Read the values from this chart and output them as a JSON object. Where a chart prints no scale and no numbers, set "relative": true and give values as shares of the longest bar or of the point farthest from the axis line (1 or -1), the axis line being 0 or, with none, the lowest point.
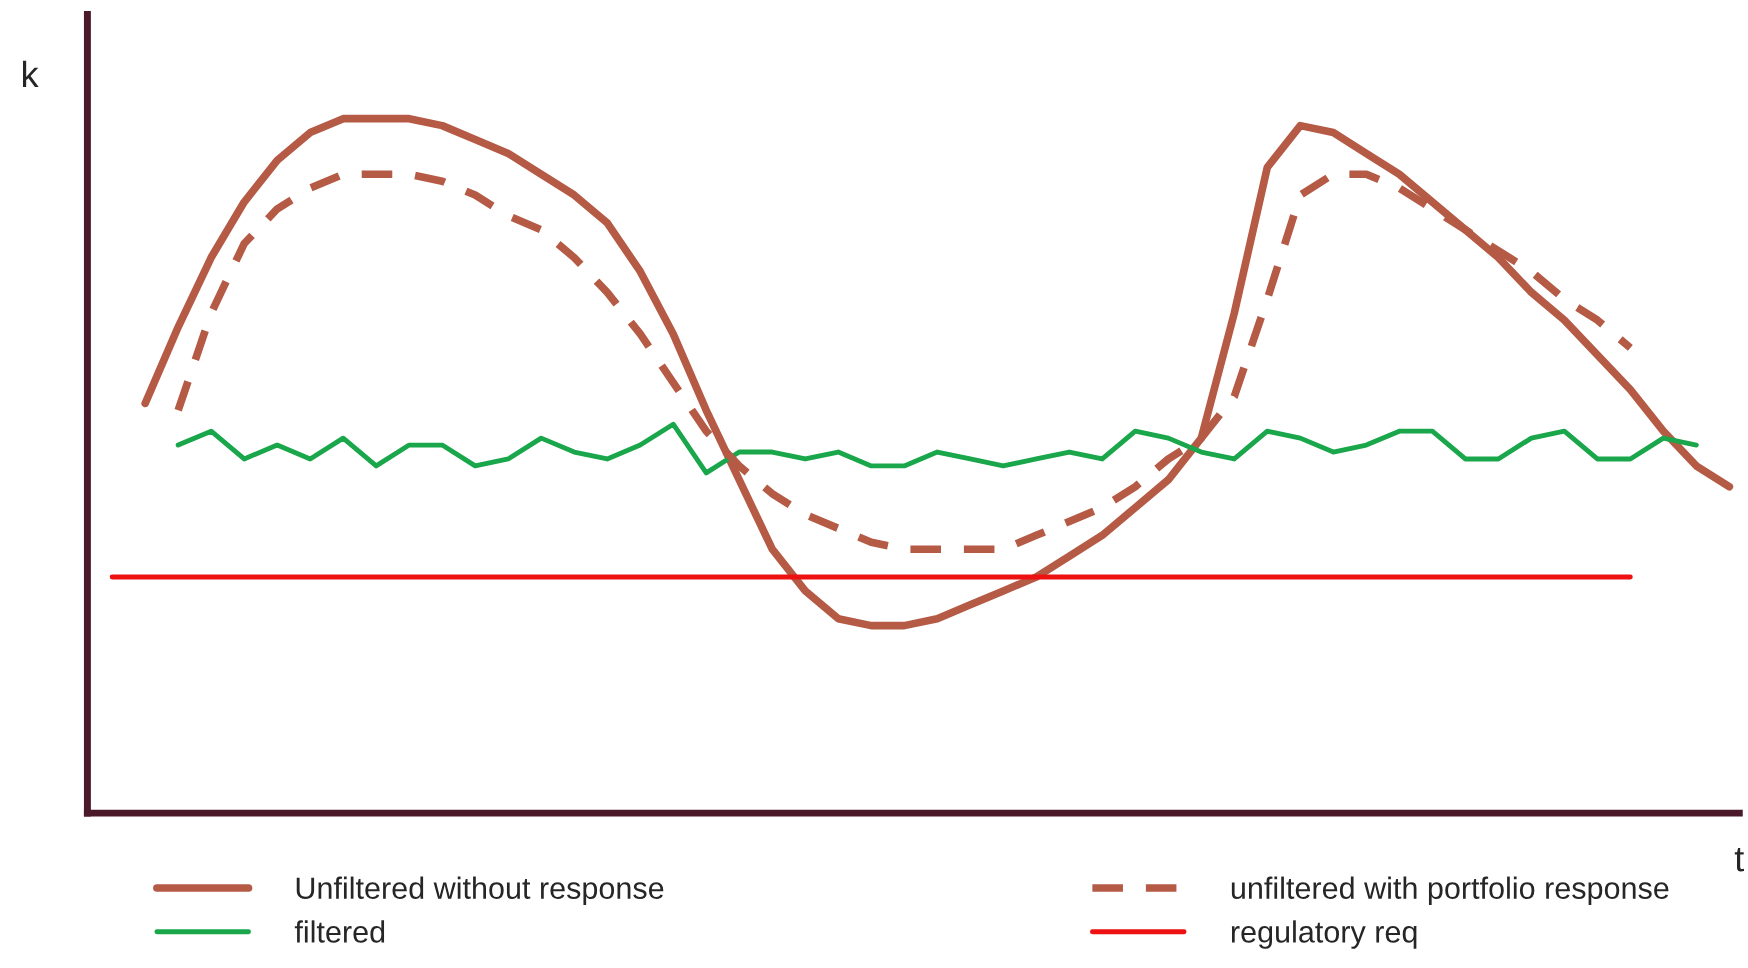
{
  "chart_data": {
    "type": "line",
    "relative": true,
    "xlabel": "t",
    "ylabel": "k",
    "legend": "bottom",
    "grid": false,
    "categories": [
      null,
      null,
      null,
      null,
      null,
      null,
      null,
      null,
      null,
      null,
      null,
      null,
      null,
      null,
      null,
      null,
      null,
      null,
      null,
      null,
      null,
      null,
      null,
      null,
      null,
      null,
      null,
      null,
      null,
      null,
      null,
      null,
      null,
      null,
      null,
      null,
      null,
      null,
      null,
      null,
      null,
      null,
      null,
      null,
      null,
      null,
      null,
      null,
      null,
      null
    ],
    "series": [
      {
        "name": "Unfiltered without response",
        "color": "#b55a45",
        "line_style": "solid",
        "values": [
          null,
          0.59,
          0.7,
          0.8,
          0.88,
          0.94,
          0.98,
          1.0,
          1.0,
          1.0,
          0.99,
          0.97,
          0.95,
          0.92,
          0.89,
          0.85,
          0.78,
          0.69,
          0.58,
          0.48,
          0.38,
          0.32,
          0.28,
          0.27,
          0.27,
          0.28,
          0.3,
          0.32,
          0.34,
          0.37,
          0.4,
          0.44,
          0.48,
          0.54,
          0.72,
          0.93,
          0.99,
          0.98,
          0.95,
          0.92,
          0.88,
          0.84,
          0.8,
          0.75,
          0.71,
          0.66,
          0.61,
          0.55,
          0.5,
          0.47
        ]
      },
      {
        "name": "filtered",
        "color": "#1aa64a",
        "line_style": "solid",
        "values": [
          null,
          null,
          0.53,
          0.55,
          0.51,
          0.53,
          0.51,
          0.54,
          0.5,
          0.53,
          0.53,
          0.5,
          0.51,
          0.54,
          0.52,
          0.51,
          0.53,
          0.56,
          0.49,
          0.52,
          0.52,
          0.51,
          0.52,
          0.5,
          0.5,
          0.52,
          0.51,
          0.5,
          0.51,
          0.52,
          0.51,
          0.55,
          0.54,
          0.52,
          0.51,
          0.55,
          0.54,
          0.52,
          0.53,
          0.55,
          0.55,
          0.51,
          0.51,
          0.54,
          0.55,
          0.51,
          0.51,
          0.54,
          0.53,
          null
        ]
      },
      {
        "name": "unfiltered with portfolio response",
        "color": "#b55a45",
        "line_style": "dashed",
        "values": [
          null,
          null,
          0.58,
          0.72,
          0.82,
          0.87,
          0.9,
          0.92,
          0.92,
          0.92,
          0.91,
          0.89,
          0.86,
          0.84,
          0.8,
          0.75,
          0.69,
          0.62,
          0.55,
          0.5,
          0.46,
          0.43,
          0.41,
          0.39,
          0.38,
          0.38,
          0.38,
          0.38,
          0.4,
          0.42,
          0.44,
          0.47,
          0.51,
          0.54,
          0.6,
          0.74,
          0.89,
          0.92,
          0.92,
          0.9,
          0.87,
          0.84,
          0.81,
          0.78,
          0.74,
          0.71,
          0.67,
          null,
          null,
          null
        ]
      },
      {
        "name": "regulatory req",
        "color": "#ee1111",
        "line_style": "solid",
        "values": [
          0.34,
          0.34,
          0.34,
          0.34,
          0.34,
          0.34,
          0.34,
          0.34,
          0.34,
          0.34,
          0.34,
          0.34,
          0.34,
          0.34,
          0.34,
          0.34,
          0.34,
          0.34,
          0.34,
          0.34,
          0.34,
          0.34,
          0.34,
          0.34,
          0.34,
          0.34,
          0.34,
          0.34,
          0.34,
          0.34,
          0.34,
          0.34,
          0.34,
          0.34,
          0.34,
          0.34,
          0.34,
          0.34,
          0.34,
          0.34,
          0.34,
          0.34,
          0.34,
          0.34,
          0.34,
          0.34,
          0.34,
          null,
          null,
          null
        ]
      }
    ]
  }
}
